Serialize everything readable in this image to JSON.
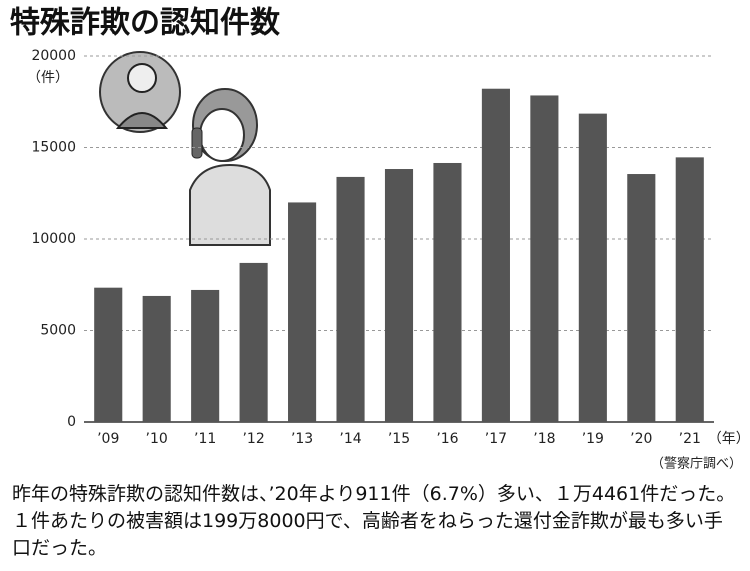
{
  "chart_data": {
    "type": "bar",
    "title": "特殊詐欺の認知件数",
    "y_label": "（件）",
    "x_label": "（年）",
    "source": "（警察庁調べ）",
    "caption": "昨年の特殊詐欺の認知件数は、’20年より911件（6.7%）多い、１万4461件だった。１件あたりの被害額は199万8000円で、高齢者をねらった還付金詐欺が最も多い手口だった。",
    "categories": [
      "’09",
      "’10",
      "’11",
      "’12",
      "’13",
      "’14",
      "’15",
      "’16",
      "’17",
      "’18",
      "’19",
      "’20",
      "’21"
    ],
    "values": [
      7340,
      6888,
      7216,
      8693,
      11998,
      13392,
      13824,
      14154,
      18212,
      17844,
      16851,
      13550,
      14461
    ],
    "color": "#555555",
    "ylim": [
      0,
      20000
    ],
    "yticks": [
      0,
      5000,
      10000,
      15000,
      20000
    ],
    "grid": true
  }
}
